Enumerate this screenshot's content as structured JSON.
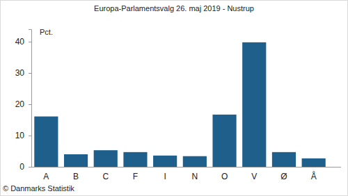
{
  "chart_data": {
    "type": "bar",
    "title": "Europa-Parlamentsvalg 26. maj 2019 - Nustrup",
    "y_label": "Pct.",
    "source": "© Danmarks Statistik",
    "categories": [
      "A",
      "B",
      "C",
      "F",
      "I",
      "N",
      "O",
      "V",
      "Ø",
      "Å"
    ],
    "values": [
      16.1,
      4.0,
      5.3,
      4.7,
      3.6,
      3.4,
      16.7,
      39.8,
      4.7,
      2.7
    ],
    "color": "#1f5f8c",
    "ylim": [
      0,
      44
    ],
    "yticks": [
      0,
      10,
      20,
      30,
      40
    ],
    "grid": false
  }
}
